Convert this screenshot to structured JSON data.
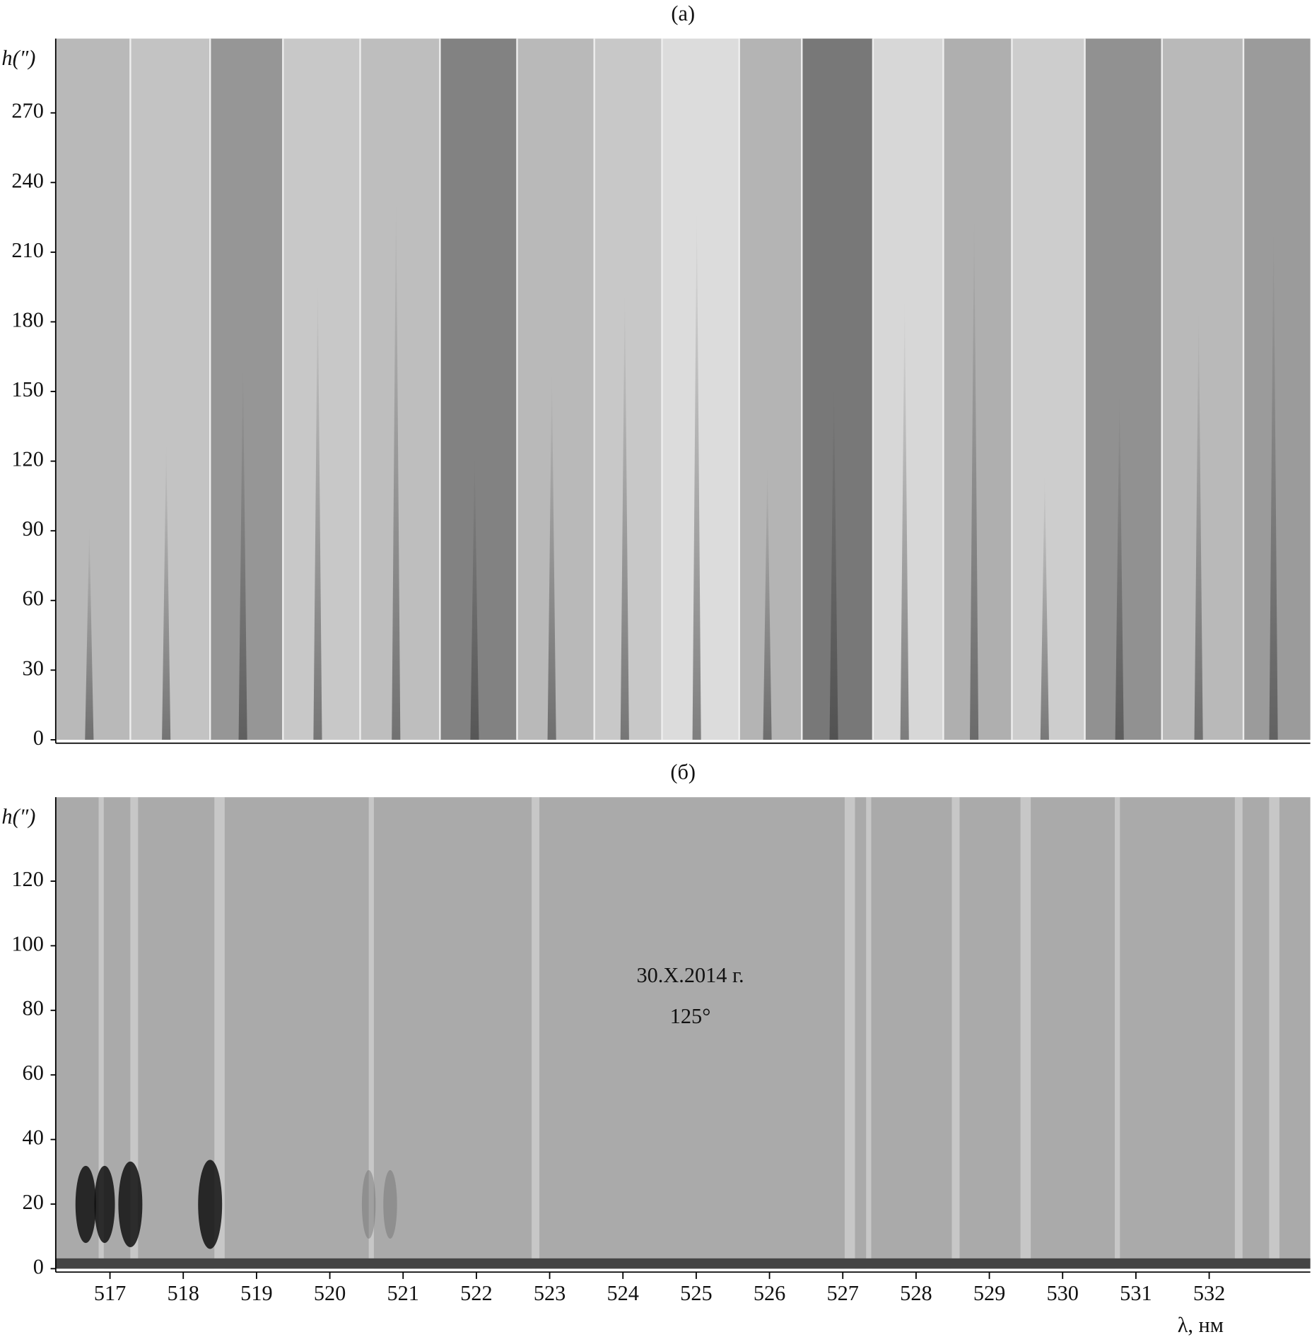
{
  "chart_data": [
    {
      "type": "image",
      "title": "(а)",
      "y_label": "h(″)",
      "ylim": [
        0,
        302
      ],
      "yticks": [
        0,
        30,
        60,
        90,
        120,
        150,
        180,
        210,
        240,
        270
      ]
    },
    {
      "type": "image",
      "title": "(б)",
      "y_label": "h(″)",
      "x_label": "λ, нм",
      "xlim": [
        516.26,
        533.38
      ],
      "xticks": [
        517,
        518,
        519,
        520,
        521,
        522,
        523,
        524,
        525,
        526,
        527,
        528,
        529,
        530,
        531,
        532
      ],
      "ylim": [
        0,
        146
      ],
      "yticks": [
        0,
        20,
        40,
        60,
        80,
        100,
        120
      ],
      "annotations": [
        "30.X.2014 г.",
        "125°"
      ]
    }
  ]
}
